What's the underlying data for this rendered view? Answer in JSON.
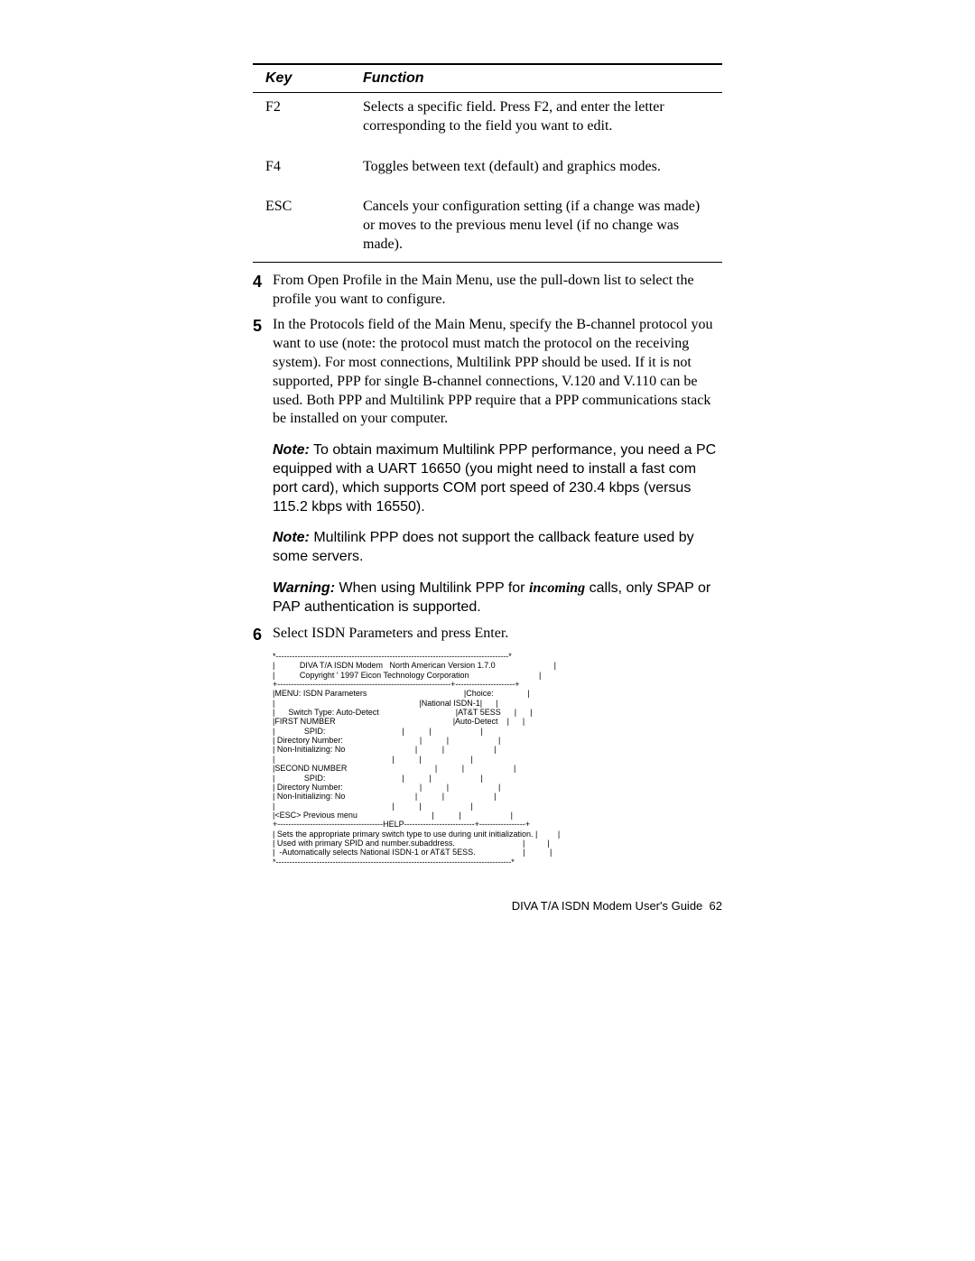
{
  "table": {
    "headers": {
      "key": "Key",
      "function": "Function"
    },
    "rows": [
      {
        "key": "F2",
        "func": "Selects a specific field. Press F2, and enter the letter corresponding to the field you want to edit."
      },
      {
        "key": "F4",
        "func": "Toggles between text (default) and graphics modes."
      },
      {
        "key": "ESC",
        "func": "Cancels your configuration setting (if a change was made) or moves to the previous menu level (if no change was made)."
      }
    ]
  },
  "steps": {
    "s4": {
      "num": "4",
      "text": "From Open Profile in the Main Menu, use the pull-down list to select the profile you want to configure."
    },
    "s5": {
      "num": "5",
      "text": "In the Protocols field of the Main Menu, specify the B-channel protocol you want to use (note: the protocol must match the protocol on the receiving system). For most connections, Multilink PPP should be used. If it is not supported, PPP for single B-channel connections, V.120 and V.110 can be used. Both PPP and Multilink PPP require that a PPP communications stack be installed on your computer.",
      "note1_label": "Note:",
      "note1_text": " To obtain maximum Multilink PPP performance, you need a PC equipped with a UART 16650 (you might need to install a fast com port card), which supports COM port speed of 230.4 kbps (versus 115.2 kbps with 16550).",
      "note2_label": "Note:",
      "note2_text": " Multilink PPP does not support the callback feature used by some servers.",
      "warn_label": "Warning:",
      "warn_pre": " When using Multilink PPP for ",
      "warn_em": "incoming",
      "warn_post": " calls, only SPAP or PAP authentication is supported."
    },
    "s6": {
      "num": "6",
      "text": "Select ISDN Parameters and press Enter."
    }
  },
  "ascii": "*--------------------------------------------------------------------------------------*\n|           DIVA T/A ISDN Modem   North American Version 1.7.0                          |\n|           Copyright ' 1997 Eicon Technology Corporation                               |\n+----------------------------------------------------------------+----------------------+\n|MENU: ISDN Parameters                                           |Choice:               |\n|                                                                |National ISDN-1|      |\n|      Switch Type: Auto-Detect                                  |AT&T 5ESS      |      |\n|FIRST NUMBER                                                    |Auto-Detect    |      |\n|             SPID:                                  |           |                      |\n| Directory Number:                                  |           |                      |\n| Non-Initializing: No                               |           |                      |\n|                                                    |           |                      |\n|SECOND NUMBER                                       |           |                      |\n|             SPID:                                  |           |                      |\n| Directory Number:                                  |           |                      |\n| Non-Initializing: No                               |           |                      |\n|                                                    |           |                      |\n|<ESC> Previous menu                                 |           |                      |\n+---------------------------------------HELP--------------------------+-----------------+\n| Sets the appropriate primary switch type to use during unit initialization. |         |\n| Used with primary SPID and number.subaddress.                              |          |\n|  -Automatically selects National ISDN-1 or AT&T 5ESS.                     |           |\n*---------------------------------------------------------------------------------------*",
  "footer": {
    "text": "DIVA T/A ISDN Modem User's Guide",
    "page": "62"
  }
}
